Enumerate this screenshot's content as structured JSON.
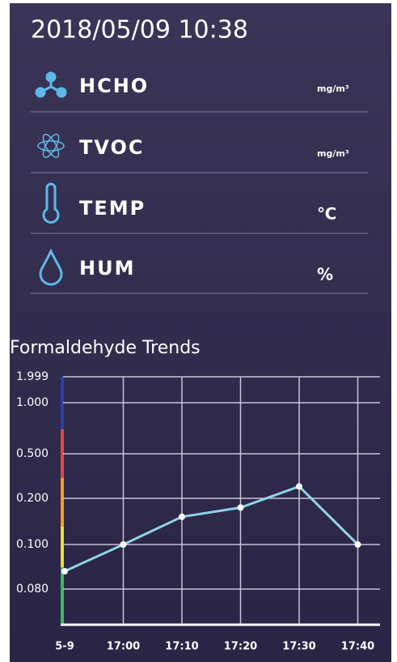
{
  "header": {
    "datetime": "2018/05/09  10:38"
  },
  "sensors": [
    {
      "name": "HCHO",
      "unit": "mg/m³"
    },
    {
      "name": "TVOC",
      "unit": "mg/m³"
    },
    {
      "name": "TEMP",
      "unit": "℃"
    },
    {
      "name": "HUM",
      "unit": "%"
    }
  ],
  "chart_data": {
    "type": "line",
    "title": "Formaldehyde Trends",
    "categories": [
      "5-9",
      "17:00",
      "17:10",
      "17:20",
      "17:30",
      "17:40"
    ],
    "values": [
      0.088,
      0.1,
      0.16,
      0.18,
      0.28,
      0.1
    ],
    "color": "#8fd3e8",
    "ylim": [
      0,
      1.999
    ],
    "yticks": [
      1.999,
      {
        "value": 1,
        "label": "1.000"
      },
      {
        "value": 0.5,
        "label": "0.500"
      },
      {
        "value": 0.2,
        "label": "0.200"
      },
      {
        "value": 0.1,
        "label": "0.100"
      },
      {
        "value": 0.08,
        "label": "0.080"
      }
    ],
    "grid": true
  }
}
